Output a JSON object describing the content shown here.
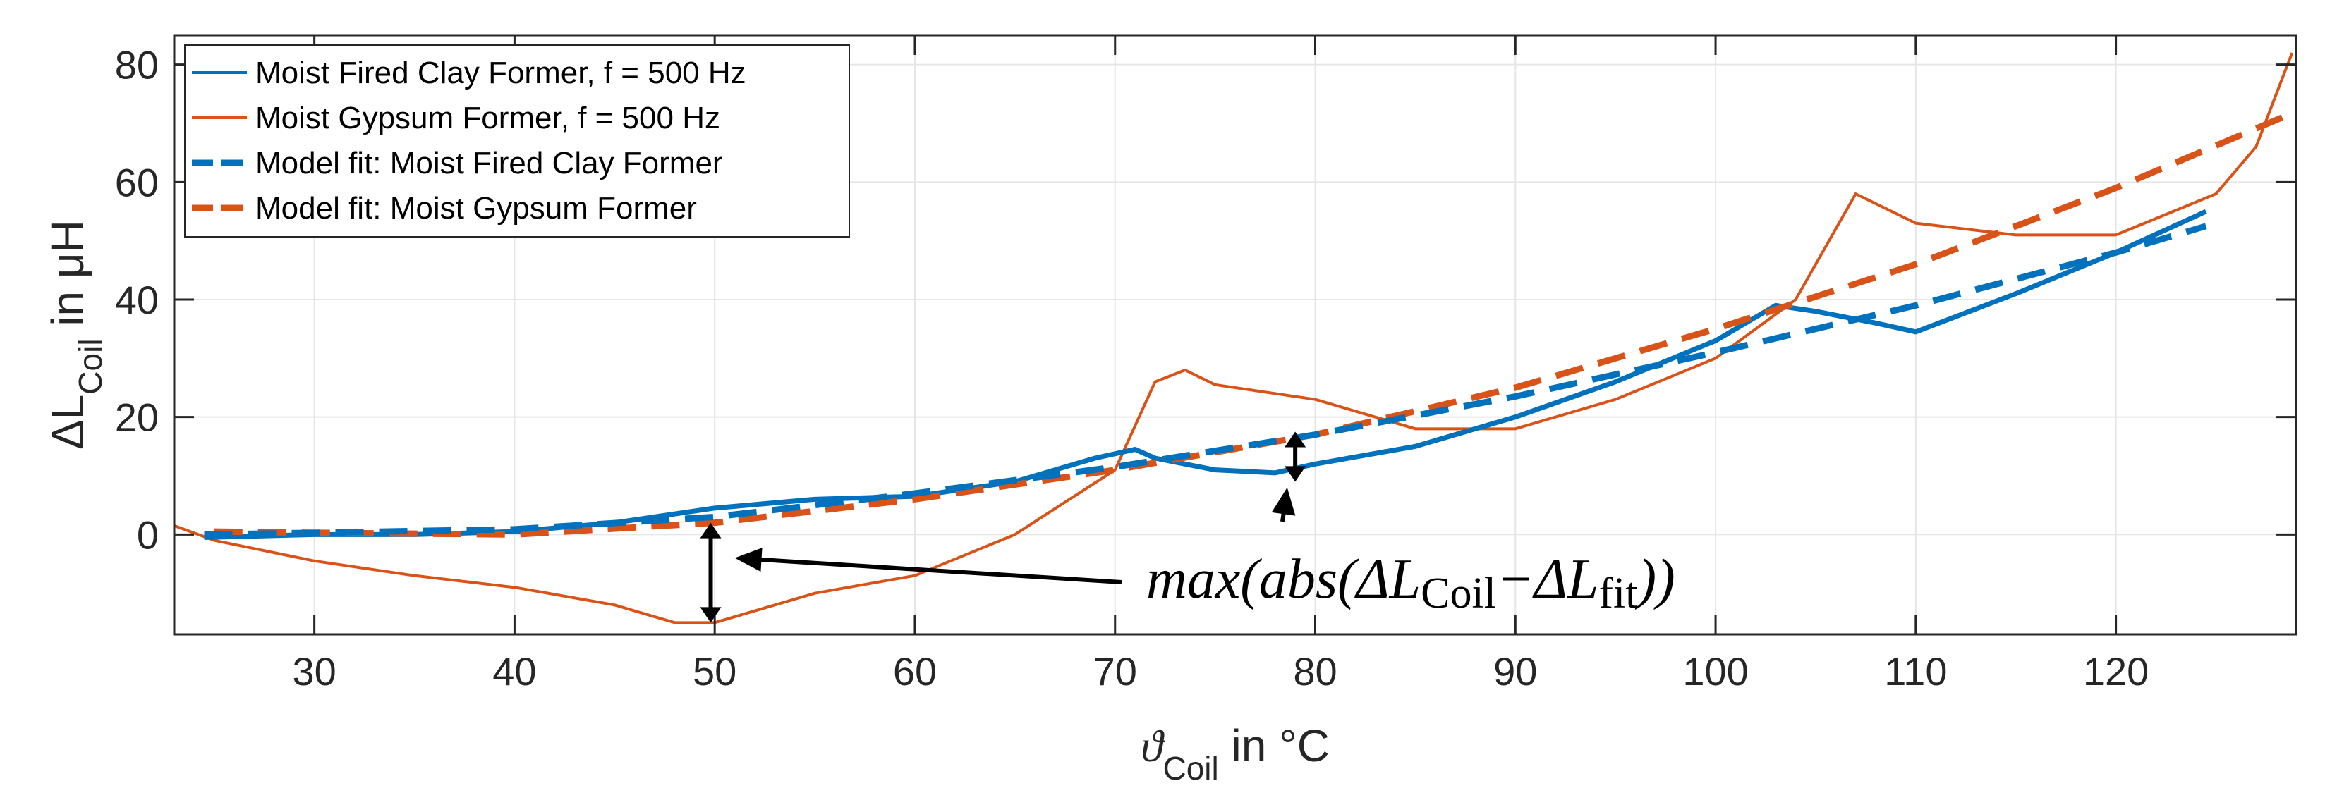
{
  "chart_data": {
    "type": "line",
    "ylabel": {
      "main": "ΔL",
      "sub": "Coil",
      "rest": " in μH"
    },
    "xlabel": {
      "main": "ϑ",
      "sub": "Coil",
      "rest": " in °C"
    },
    "xlim": [
      23,
      129
    ],
    "ylim": [
      -17,
      85
    ],
    "xticks": [
      30,
      40,
      50,
      60,
      70,
      80,
      90,
      100,
      110,
      120
    ],
    "yticks": [
      0,
      20,
      40,
      60,
      80
    ],
    "grid": true,
    "legend_position": "top-left",
    "series": [
      {
        "name": "Moist Fired Clay Former, f = 500 Hz",
        "color": "#0072BD",
        "style": "solid",
        "x": [
          24.5,
          30,
          35,
          40,
          45,
          50,
          55,
          60,
          65,
          69,
          71,
          72,
          75,
          78,
          80,
          85,
          90,
          95,
          100,
          103,
          105,
          108,
          110,
          115,
          120,
          124.5
        ],
        "y": [
          -0.5,
          0,
          0,
          0.5,
          2,
          4.5,
          6,
          6.5,
          9,
          13,
          14.5,
          13,
          11,
          10.5,
          12,
          15,
          20,
          26,
          33,
          39,
          38,
          36,
          34.5,
          41,
          48,
          55
        ]
      },
      {
        "name": "Moist Gypsum Former, f = 500 Hz",
        "color": "#D95319",
        "style": "solid",
        "x": [
          23,
          25,
          30,
          35,
          40,
          45,
          48,
          50,
          55,
          60,
          65,
          70,
          72,
          73.5,
          75,
          80,
          85,
          90,
          95,
          100,
          104,
          106,
          107,
          110,
          115,
          120,
          125,
          127,
          128.8
        ],
        "y": [
          1.5,
          -1,
          -4.5,
          -7,
          -9,
          -12,
          -15,
          -15,
          -10,
          -7,
          0,
          11,
          26,
          28,
          25.5,
          23,
          18,
          18,
          23,
          30,
          40,
          52,
          58,
          53,
          51,
          51,
          58,
          66,
          82
        ]
      },
      {
        "name": "Model fit: Moist Fired Clay Former",
        "color": "#0072BD",
        "style": "dashed",
        "x": [
          24.5,
          30,
          40,
          50,
          60,
          70,
          80,
          90,
          100,
          110,
          120,
          124.5
        ],
        "y": [
          0,
          0.3,
          0.9,
          3,
          7,
          11.5,
          17,
          23.5,
          31,
          39,
          48,
          52.5
        ]
      },
      {
        "name": "Model fit: Moist Gypsum Former",
        "color": "#D95319",
        "style": "dashed",
        "x": [
          25,
          30,
          40,
          50,
          60,
          70,
          80,
          90,
          100,
          110,
          120,
          129
        ],
        "y": [
          0.5,
          0.3,
          0,
          2,
          6,
          11,
          17,
          25,
          35,
          46,
          59,
          72
        ]
      }
    ],
    "annotations": [
      {
        "text_main": "max(abs(ΔL",
        "text_sub1": "Coil",
        "text_mid": "−ΔL",
        "text_sub2": "fit",
        "text_end": "))",
        "vertical_arrows": [
          {
            "x": 49.8,
            "y_from": 2,
            "y_to": -15
          },
          {
            "x": 79,
            "y_from": 17.5,
            "y_to": 9
          }
        ],
        "pointer_targets": [
          {
            "x": 51,
            "y": -4
          },
          {
            "x": 78.6,
            "y": 8
          }
        ],
        "text_anchor_data": {
          "x": 88,
          "y": -8
        }
      }
    ]
  }
}
